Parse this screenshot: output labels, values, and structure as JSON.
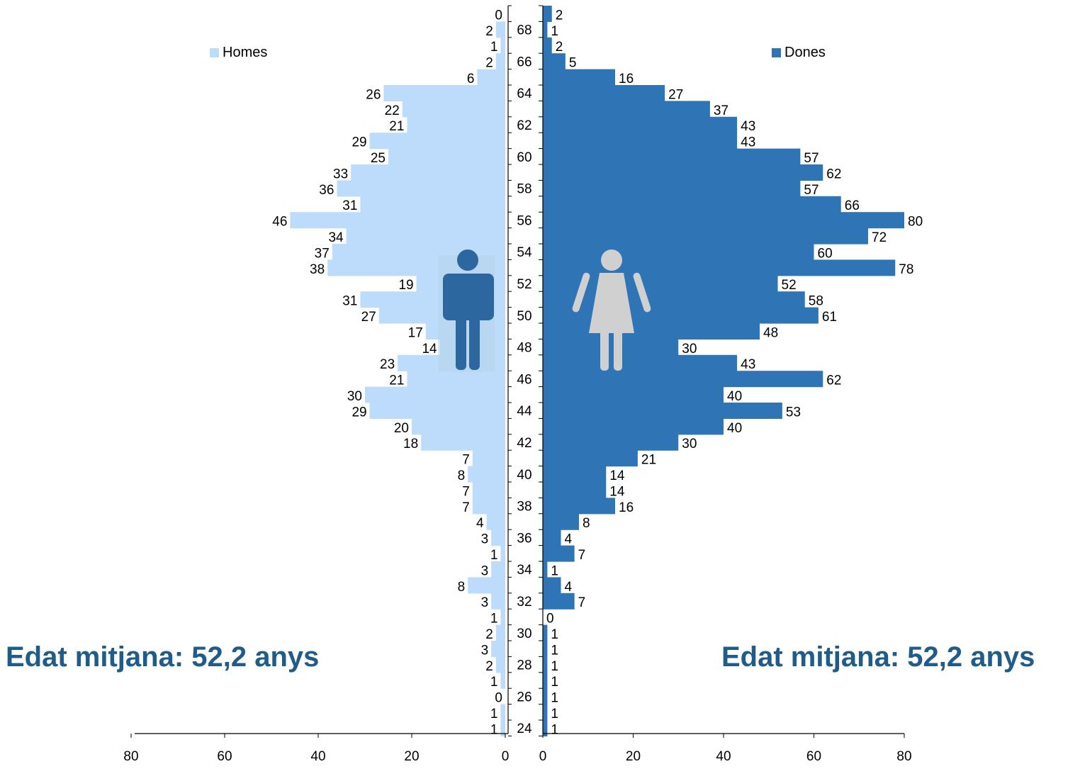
{
  "chart_data": {
    "type": "bar",
    "orientation": "horizontal-population-pyramid",
    "y_label_ticks": [
      "68",
      "66",
      "64",
      "62",
      "60",
      "58",
      "56",
      "54",
      "52",
      "50",
      "48",
      "46",
      "44",
      "42",
      "40",
      "38",
      "36",
      "34",
      "32",
      "30",
      "28",
      "26",
      "24"
    ],
    "series": [
      {
        "name": "Homes",
        "color": "#bddcfb",
        "values": [
          0,
          2,
          1,
          2,
          6,
          26,
          22,
          21,
          29,
          25,
          33,
          36,
          31,
          46,
          34,
          37,
          38,
          19,
          31,
          27,
          17,
          14,
          23,
          21,
          30,
          29,
          20,
          18,
          7,
          8,
          7,
          7,
          4,
          3,
          1,
          3,
          8,
          3,
          1,
          2,
          3,
          2,
          1,
          0,
          1,
          1
        ]
      },
      {
        "name": "Dones",
        "color": "#2f74b5",
        "values": [
          2,
          1,
          2,
          5,
          16,
          27,
          37,
          43,
          43,
          57,
          62,
          57,
          66,
          80,
          72,
          60,
          78,
          52,
          58,
          61,
          48,
          30,
          43,
          62,
          40,
          53,
          40,
          30,
          21,
          14,
          14,
          16,
          8,
          4,
          7,
          1,
          4,
          7,
          0,
          1,
          1,
          1,
          1,
          1,
          1,
          1
        ]
      }
    ],
    "x_left_ticks": [
      "80",
      "60",
      "40",
      "20",
      "0"
    ],
    "x_right_ticks": [
      "0",
      "20",
      "40",
      "60",
      "80"
    ],
    "xlim": [
      0,
      80
    ]
  },
  "legend": {
    "left": "Homes",
    "right": "Dones"
  },
  "avg_left": "Edat mitjana: 52,2 anys",
  "avg_right": "Edat mitjana: 52,2 anys"
}
